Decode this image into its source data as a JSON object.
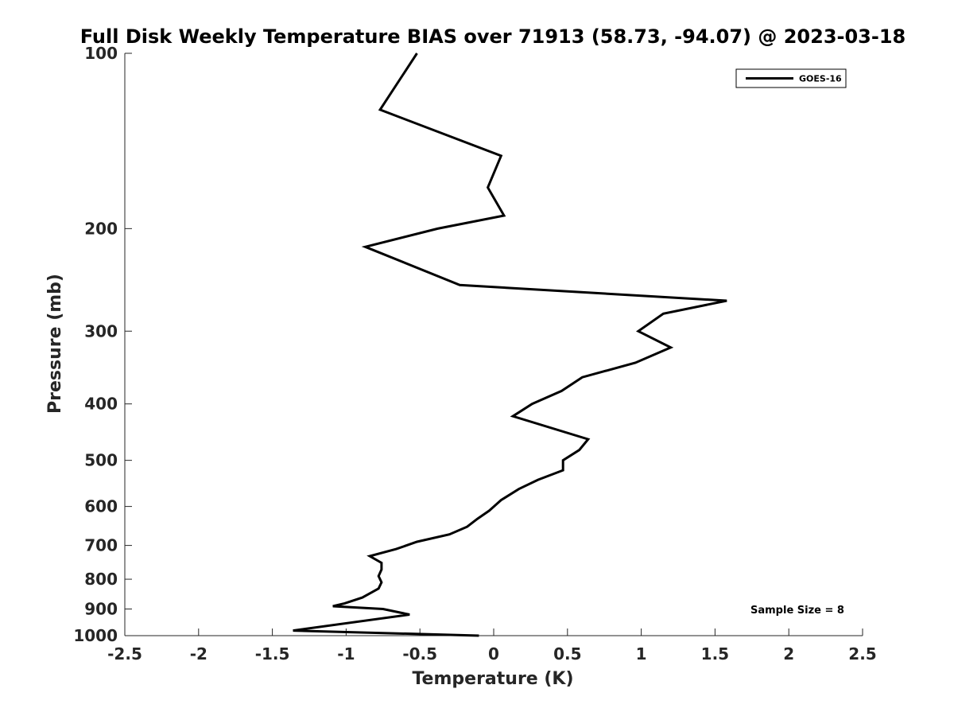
{
  "chart_data": {
    "type": "line",
    "title": "Full Disk Weekly Temperature BIAS over 71913 (58.73, -94.07) @ 2023-03-18",
    "xlabel": "Temperature (K)",
    "ylabel": "Pressure (mb)",
    "xlim": [
      -2.5,
      2.5
    ],
    "ylim": [
      100,
      1000
    ],
    "y_scale": "log",
    "y_reversed": true,
    "x_ticks": [
      "-2.5",
      "-2",
      "-1.5",
      "-1",
      "-0.5",
      "0",
      "0.5",
      "1",
      "1.5",
      "2",
      "2.5"
    ],
    "y_ticks": [
      "100",
      "200",
      "300",
      "400",
      "500",
      "600",
      "700",
      "800",
      "900",
      "1000"
    ],
    "grid": false,
    "legend": {
      "position": "top-right",
      "entries": [
        "GOES-16"
      ]
    },
    "annotations": [
      "Sample Size = 8"
    ],
    "series": [
      {
        "name": "GOES-16",
        "color": "#000000",
        "points": [
          {
            "x": -0.52,
            "y": 100
          },
          {
            "x": -0.77,
            "y": 125
          },
          {
            "x": 0.05,
            "y": 150
          },
          {
            "x": -0.04,
            "y": 170
          },
          {
            "x": 0.07,
            "y": 190
          },
          {
            "x": -0.38,
            "y": 200
          },
          {
            "x": -0.87,
            "y": 215
          },
          {
            "x": -0.23,
            "y": 250
          },
          {
            "x": 1.58,
            "y": 266
          },
          {
            "x": 1.15,
            "y": 280
          },
          {
            "x": 0.98,
            "y": 300
          },
          {
            "x": 1.2,
            "y": 320
          },
          {
            "x": 0.96,
            "y": 340
          },
          {
            "x": 0.6,
            "y": 360
          },
          {
            "x": 0.46,
            "y": 380
          },
          {
            "x": 0.26,
            "y": 400
          },
          {
            "x": 0.13,
            "y": 420
          },
          {
            "x": 0.64,
            "y": 460
          },
          {
            "x": 0.58,
            "y": 480
          },
          {
            "x": 0.47,
            "y": 500
          },
          {
            "x": 0.47,
            "y": 520
          },
          {
            "x": 0.3,
            "y": 540
          },
          {
            "x": 0.17,
            "y": 560
          },
          {
            "x": 0.05,
            "y": 585
          },
          {
            "x": -0.03,
            "y": 610
          },
          {
            "x": -0.11,
            "y": 630
          },
          {
            "x": -0.18,
            "y": 650
          },
          {
            "x": -0.3,
            "y": 670
          },
          {
            "x": -0.52,
            "y": 690
          },
          {
            "x": -0.66,
            "y": 710
          },
          {
            "x": -0.84,
            "y": 730
          },
          {
            "x": -0.76,
            "y": 750
          },
          {
            "x": -0.76,
            "y": 770
          },
          {
            "x": -0.78,
            "y": 790
          },
          {
            "x": -0.76,
            "y": 810
          },
          {
            "x": -0.78,
            "y": 830
          },
          {
            "x": -0.89,
            "y": 860
          },
          {
            "x": -1.01,
            "y": 880
          },
          {
            "x": -1.09,
            "y": 890
          },
          {
            "x": -0.75,
            "y": 900
          },
          {
            "x": -0.57,
            "y": 920
          },
          {
            "x": -1.36,
            "y": 980
          },
          {
            "x": -0.1,
            "y": 1000
          }
        ]
      }
    ]
  }
}
